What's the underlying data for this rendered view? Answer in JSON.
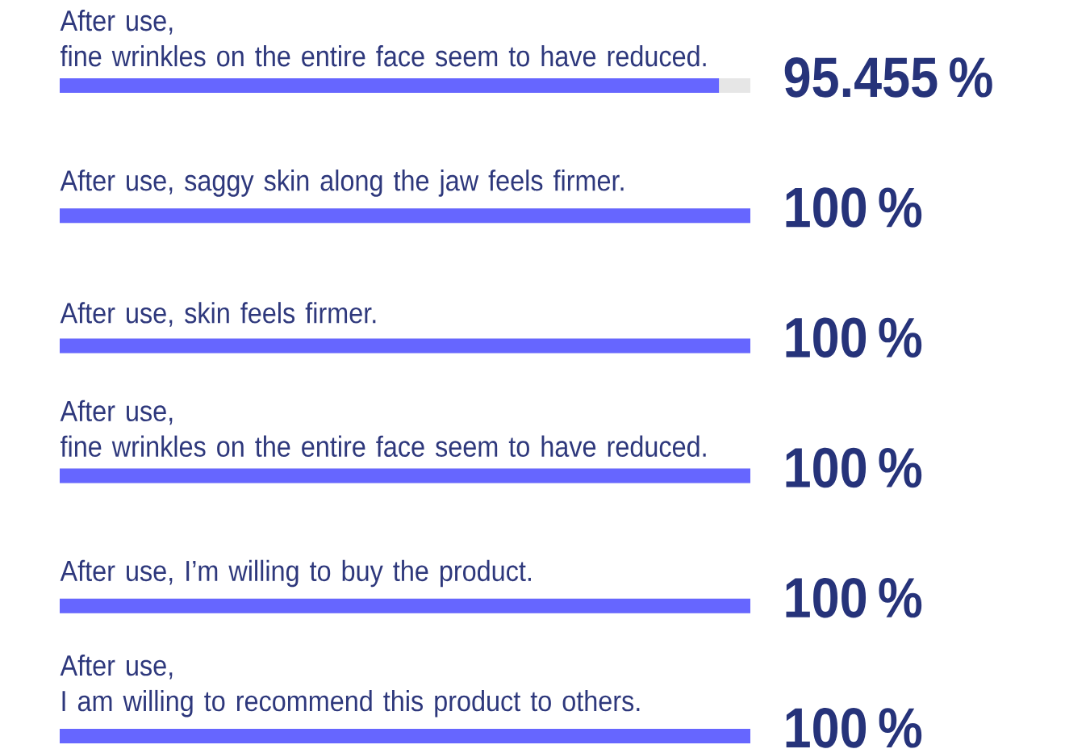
{
  "chart_data": {
    "type": "bar",
    "orientation": "horizontal",
    "categories": [
      "After use,\nfine wrinkles on the entire face seem to have reduced.",
      "After use, saggy skin along the jaw feels firmer.",
      "After use, skin feels firmer.",
      "After use,\nfine wrinkles on the entire face seem to have reduced.",
      "After use, I’m willing to buy the product.",
      "After use,\nI am willing to recommend this product to others."
    ],
    "values": [
      95.455,
      100,
      100,
      100,
      100,
      100
    ],
    "value_labels": [
      "95.455 %",
      "100 %",
      "100 %",
      "100 %",
      "100 %",
      "100 %"
    ],
    "color": "#6666ff",
    "xlim": [
      0,
      100
    ],
    "tick_labels": "y"
  }
}
